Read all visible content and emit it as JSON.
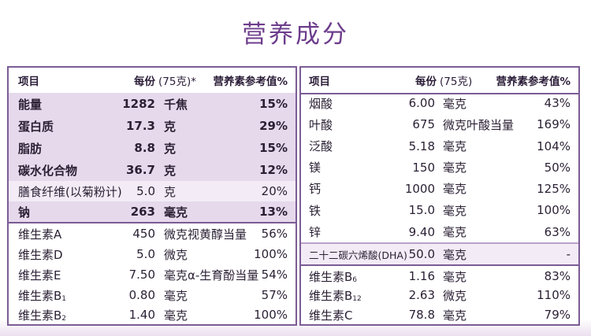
{
  "page_title": "营养成分",
  "colors": {
    "title": "#6d3d8c",
    "border": "#7c5c95",
    "shade": "#e6d9ec"
  },
  "left_table": {
    "header": {
      "name": "项目",
      "num": "每份",
      "unit": "(75克)*",
      "pct": "营养素参考值%"
    },
    "rows": [
      {
        "name": "能量",
        "num": "1282",
        "unit": "千焦",
        "pct": "15%"
      },
      {
        "name": "蛋白质",
        "num": "17.3",
        "unit": "克",
        "pct": "29%"
      },
      {
        "name": "脂肪",
        "num": "8.8",
        "unit": "克",
        "pct": "15%"
      },
      {
        "name": "碳水化合物",
        "num": "36.7",
        "unit": "克",
        "pct": "12%"
      },
      {
        "name": "膳食纤维(以菊粉计)",
        "num": "5.0",
        "unit": "克",
        "pct": "20%"
      },
      {
        "name": "钠",
        "num": "263",
        "unit": "毫克",
        "pct": "13%"
      },
      {
        "name": "维生素A",
        "num": "450",
        "unit": "微克视黄醇当量",
        "pct": "56%"
      },
      {
        "name": "维生素D",
        "num": "5.0",
        "unit": "微克",
        "pct": "100%"
      },
      {
        "name": "维生素E",
        "num": "7.50",
        "unit": "毫克α-生育酚当量",
        "pct": "54%"
      },
      {
        "name": "维生素B",
        "sub": "1",
        "num": "0.80",
        "unit": "毫克",
        "pct": "57%"
      },
      {
        "name": "维生素B",
        "sub": "2",
        "num": "1.40",
        "unit": "毫克",
        "pct": "100%"
      }
    ]
  },
  "right_table": {
    "header": {
      "name": "项目",
      "num": "每份",
      "unit": "(75克)",
      "pct": "营养素参考值%"
    },
    "rows": [
      {
        "name": "烟酸",
        "num": "6.00",
        "unit": "毫克",
        "pct": "43%"
      },
      {
        "name": "叶酸",
        "num": "675",
        "unit": "微克叶酸当量",
        "pct": "169%"
      },
      {
        "name": "泛酸",
        "num": "5.18",
        "unit": "毫克",
        "pct": "104%"
      },
      {
        "name": "镁",
        "num": "150",
        "unit": "毫克",
        "pct": "50%"
      },
      {
        "name": "钙",
        "num": "1000",
        "unit": "毫克",
        "pct": "125%"
      },
      {
        "name": "铁",
        "num": "15.0",
        "unit": "毫克",
        "pct": "100%"
      },
      {
        "name": "锌",
        "num": "9.40",
        "unit": "毫克",
        "pct": "63%"
      },
      {
        "name": "二十二碳六烯酸(DHA)",
        "num": "50.0",
        "unit": "毫克",
        "pct": "-"
      },
      {
        "name": "维生素B",
        "sub": "6",
        "num": "1.16",
        "unit": "毫克",
        "pct": "83%"
      },
      {
        "name": "维生素B",
        "sub": "12",
        "num": "2.63",
        "unit": "微克",
        "pct": "110%"
      },
      {
        "name": "维生素C",
        "num": "78.8",
        "unit": "毫克",
        "pct": "79%"
      }
    ]
  }
}
